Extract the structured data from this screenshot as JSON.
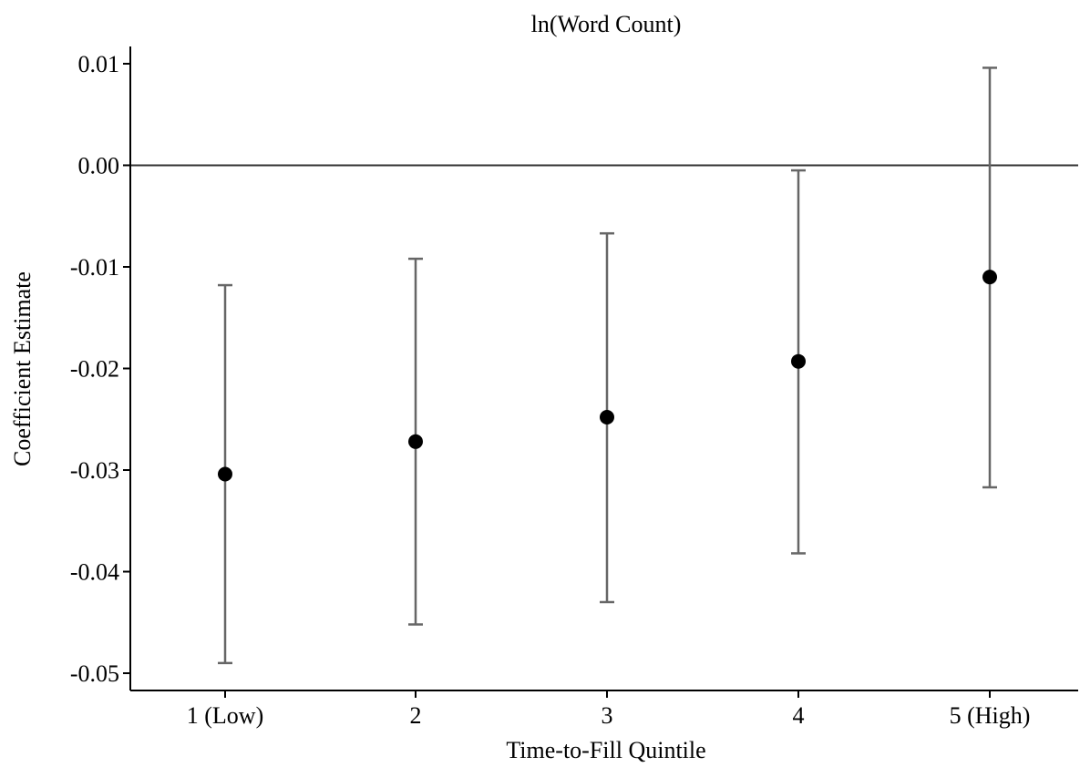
{
  "chart_data": {
    "type": "scatter",
    "title": "ln(Word Count)",
    "xlabel": "Time-to-Fill Quintile",
    "ylabel": "Coefficient Estimate",
    "categories": [
      "1 (Low)",
      "2",
      "3",
      "4",
      "5 (High)"
    ],
    "series": [
      {
        "values": [
          -0.0304,
          -0.0272,
          -0.0248,
          -0.0193,
          -0.011
        ],
        "ci_lower": [
          -0.049,
          -0.0452,
          -0.043,
          -0.0382,
          -0.0317
        ],
        "ci_upper": [
          -0.0118,
          -0.0092,
          -0.0067,
          -0.0005,
          0.0096
        ]
      }
    ],
    "y_ticks": [
      "0.01",
      "0.00",
      "-0.01",
      "-0.02",
      "-0.03",
      "-0.04",
      "-0.05"
    ],
    "y_tick_values": [
      0.01,
      0.0,
      -0.01,
      -0.02,
      -0.03,
      -0.04,
      -0.05
    ],
    "ylim": [
      -0.0517,
      0.0117
    ],
    "reference_line_y": 0,
    "grid": false,
    "colors": {
      "marker": "#000000",
      "errorbar": "#666666",
      "axis": "#000000",
      "reference": "#333333"
    }
  }
}
